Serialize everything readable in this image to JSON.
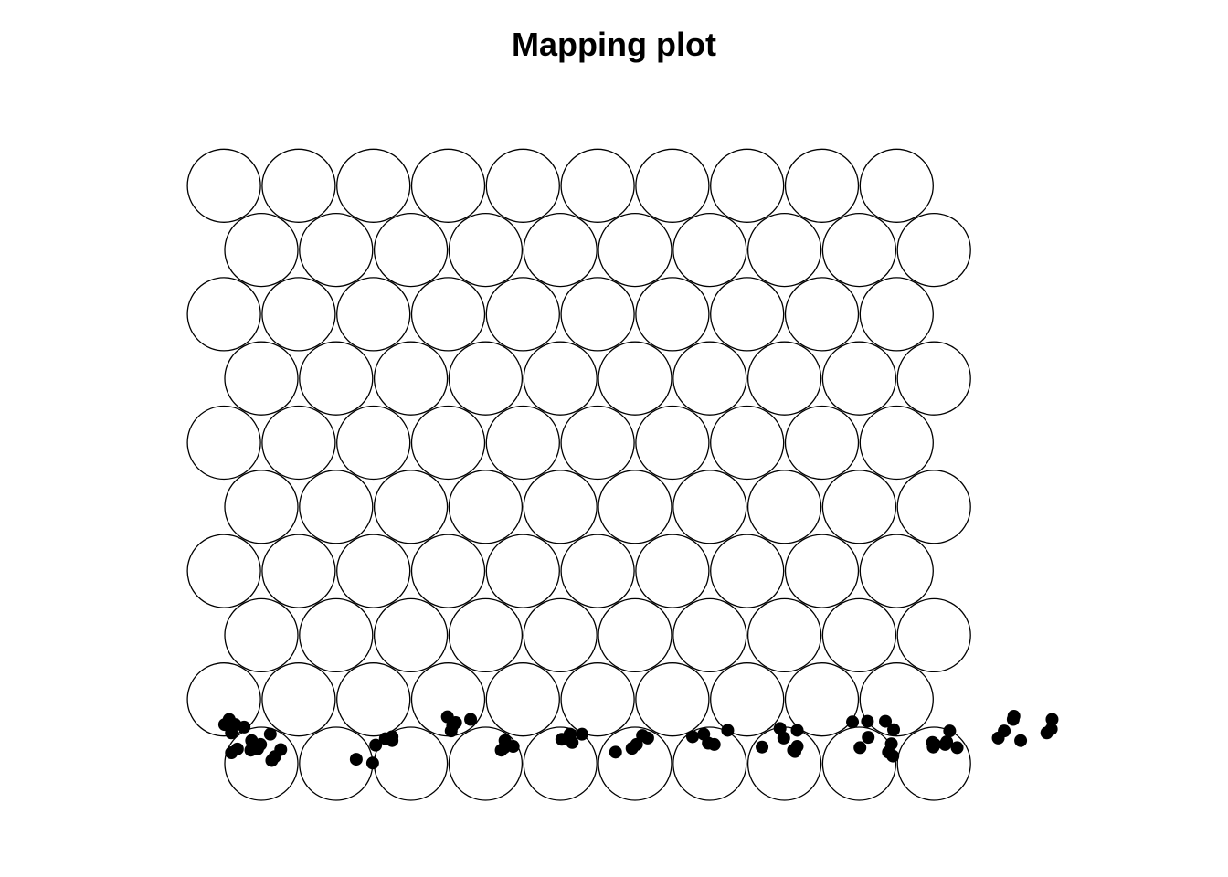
{
  "chart_data": {
    "type": "scatter",
    "title": "Mapping plot",
    "grid": {
      "xdim": 10,
      "ydim": 10,
      "topology": "hexagonal"
    },
    "series": [
      {
        "points": [
          [
            -0.4,
            0.17
          ],
          [
            -0.32,
            0.23
          ],
          [
            -0.13,
            0.36
          ],
          [
            -0.4,
            0.48
          ],
          [
            -0.49,
            0.61
          ],
          [
            -0.35,
            0.61
          ],
          [
            -0.43,
            0.69
          ],
          [
            0.12,
            0.46
          ],
          [
            -0.23,
            0.57
          ],
          [
            0.26,
            0.22
          ],
          [
            -0.14,
            0.21
          ],
          [
            -0.05,
            0.23
          ],
          [
            -0.01,
            0.3
          ],
          [
            0.18,
            0.11
          ],
          [
            0.14,
            0.05
          ],
          [
            1.49,
            0.01
          ],
          [
            1.27,
            0.07
          ],
          [
            1.75,
            0.36
          ],
          [
            1.53,
            0.29
          ],
          [
            1.66,
            0.39
          ],
          [
            1.75,
            0.42
          ],
          [
            2.8,
            0.69
          ],
          [
            2.6,
            0.64
          ],
          [
            2.56,
            0.59
          ],
          [
            2.54,
            0.51
          ],
          [
            2.49,
            0.73
          ],
          [
            3.37,
            0.27
          ],
          [
            3.21,
            0.21
          ],
          [
            3.26,
            0.36
          ],
          [
            3.25,
            0.25
          ],
          [
            4.02,
            0.38
          ],
          [
            4.16,
            0.33
          ],
          [
            4.13,
            0.46
          ],
          [
            4.29,
            0.46
          ],
          [
            4.96,
            0.24
          ],
          [
            4.74,
            0.18
          ],
          [
            5.17,
            0.4
          ],
          [
            5.1,
            0.44
          ],
          [
            5.02,
            0.3
          ],
          [
            5.98,
            0.32
          ],
          [
            5.92,
            0.46
          ],
          [
            5.77,
            0.42
          ],
          [
            6.24,
            0.52
          ],
          [
            6.06,
            0.3
          ],
          [
            6.7,
            0.26
          ],
          [
            6.99,
            0.4
          ],
          [
            7.14,
            0.19
          ],
          [
            7.12,
            0.21
          ],
          [
            7.17,
            0.27
          ],
          [
            6.94,
            0.55
          ],
          [
            7.17,
            0.52
          ],
          [
            8.11,
            0.66
          ],
          [
            7.91,
            0.65
          ],
          [
            8.45,
            0.12
          ],
          [
            8.39,
            0.18
          ],
          [
            8.01,
            0.25
          ],
          [
            8.12,
            0.41
          ],
          [
            8.35,
            0.66
          ],
          [
            8.46,
            0.53
          ],
          [
            8.43,
            0.31
          ],
          [
            9.15,
            0.3
          ],
          [
            8.99,
            0.26
          ],
          [
            9.01,
            0.3
          ],
          [
            8.98,
            0.33
          ],
          [
            9.21,
            0.51
          ],
          [
            9.17,
            0.34
          ],
          [
            9.31,
            0.25
          ],
          [
            10.16,
            0.36
          ],
          [
            10.06,
            0.69
          ],
          [
            9.86,
            0.4
          ],
          [
            10.07,
            0.74
          ],
          [
            9.94,
            0.51
          ],
          [
            10.51,
            0.48
          ],
          [
            10.58,
            0.69
          ],
          [
            10.57,
            0.54
          ]
        ]
      }
    ]
  }
}
